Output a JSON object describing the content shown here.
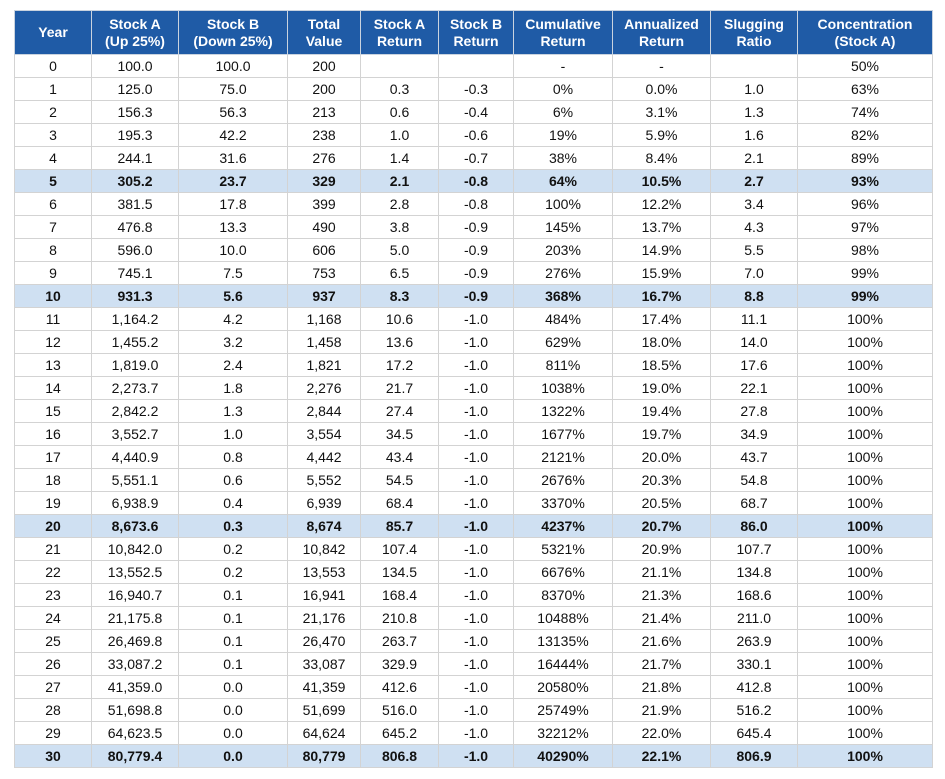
{
  "table": {
    "headers": [
      "Year",
      "Stock A\n(Up 25%)",
      "Stock B\n(Down 25%)",
      "Total\nValue",
      "Stock A\nReturn",
      "Stock B\nReturn",
      "Cumulative\nReturn",
      "Annualized\nReturn",
      "Slugging\nRatio",
      "Concentration\n(Stock A)"
    ],
    "rows": [
      {
        "cells": [
          "0",
          "100.0",
          "100.0",
          "200",
          null,
          null,
          "-",
          "-",
          null,
          "50%"
        ]
      },
      {
        "cells": [
          "1",
          "125.0",
          "75.0",
          "200",
          "0.3",
          "-0.3",
          "0%",
          "0.0%",
          "1.0",
          "63%"
        ]
      },
      {
        "cells": [
          "2",
          "156.3",
          "56.3",
          "213",
          "0.6",
          "-0.4",
          "6%",
          "3.1%",
          "1.3",
          "74%"
        ]
      },
      {
        "cells": [
          "3",
          "195.3",
          "42.2",
          "238",
          "1.0",
          "-0.6",
          "19%",
          "5.9%",
          "1.6",
          "82%"
        ]
      },
      {
        "cells": [
          "4",
          "244.1",
          "31.6",
          "276",
          "1.4",
          "-0.7",
          "38%",
          "8.4%",
          "2.1",
          "89%"
        ]
      },
      {
        "cells": [
          "5",
          "305.2",
          "23.7",
          "329",
          "2.1",
          "-0.8",
          "64%",
          "10.5%",
          "2.7",
          "93%"
        ],
        "bold": true
      },
      {
        "cells": [
          "6",
          "381.5",
          "17.8",
          "399",
          "2.8",
          "-0.8",
          "100%",
          "12.2%",
          "3.4",
          "96%"
        ]
      },
      {
        "cells": [
          "7",
          "476.8",
          "13.3",
          "490",
          "3.8",
          "-0.9",
          "145%",
          "13.7%",
          "4.3",
          "97%"
        ]
      },
      {
        "cells": [
          "8",
          "596.0",
          "10.0",
          "606",
          "5.0",
          "-0.9",
          "203%",
          "14.9%",
          "5.5",
          "98%"
        ]
      },
      {
        "cells": [
          "9",
          "745.1",
          "7.5",
          "753",
          "6.5",
          "-0.9",
          "276%",
          "15.9%",
          "7.0",
          "99%"
        ]
      },
      {
        "cells": [
          "10",
          "931.3",
          "5.6",
          "937",
          "8.3",
          "-0.9",
          "368%",
          "16.7%",
          "8.8",
          "99%"
        ],
        "bold": true
      },
      {
        "cells": [
          "11",
          "1,164.2",
          "4.2",
          "1,168",
          "10.6",
          "-1.0",
          "484%",
          "17.4%",
          "11.1",
          "100%"
        ]
      },
      {
        "cells": [
          "12",
          "1,455.2",
          "3.2",
          "1,458",
          "13.6",
          "-1.0",
          "629%",
          "18.0%",
          "14.0",
          "100%"
        ]
      },
      {
        "cells": [
          "13",
          "1,819.0",
          "2.4",
          "1,821",
          "17.2",
          "-1.0",
          "811%",
          "18.5%",
          "17.6",
          "100%"
        ]
      },
      {
        "cells": [
          "14",
          "2,273.7",
          "1.8",
          "2,276",
          "21.7",
          "-1.0",
          "1038%",
          "19.0%",
          "22.1",
          "100%"
        ]
      },
      {
        "cells": [
          "15",
          "2,842.2",
          "1.3",
          "2,844",
          "27.4",
          "-1.0",
          "1322%",
          "19.4%",
          "27.8",
          "100%"
        ]
      },
      {
        "cells": [
          "16",
          "3,552.7",
          "1.0",
          "3,554",
          "34.5",
          "-1.0",
          "1677%",
          "19.7%",
          "34.9",
          "100%"
        ]
      },
      {
        "cells": [
          "17",
          "4,440.9",
          "0.8",
          "4,442",
          "43.4",
          "-1.0",
          "2121%",
          "20.0%",
          "43.7",
          "100%"
        ]
      },
      {
        "cells": [
          "18",
          "5,551.1",
          "0.6",
          "5,552",
          "54.5",
          "-1.0",
          "2676%",
          "20.3%",
          "54.8",
          "100%"
        ]
      },
      {
        "cells": [
          "19",
          "6,938.9",
          "0.4",
          "6,939",
          "68.4",
          "-1.0",
          "3370%",
          "20.5%",
          "68.7",
          "100%"
        ]
      },
      {
        "cells": [
          "20",
          "8,673.6",
          "0.3",
          "8,674",
          "85.7",
          "-1.0",
          "4237%",
          "20.7%",
          "86.0",
          "100%"
        ],
        "bold": true
      },
      {
        "cells": [
          "21",
          "10,842.0",
          "0.2",
          "10,842",
          "107.4",
          "-1.0",
          "5321%",
          "20.9%",
          "107.7",
          "100%"
        ]
      },
      {
        "cells": [
          "22",
          "13,552.5",
          "0.2",
          "13,553",
          "134.5",
          "-1.0",
          "6676%",
          "21.1%",
          "134.8",
          "100%"
        ]
      },
      {
        "cells": [
          "23",
          "16,940.7",
          "0.1",
          "16,941",
          "168.4",
          "-1.0",
          "8370%",
          "21.3%",
          "168.6",
          "100%"
        ]
      },
      {
        "cells": [
          "24",
          "21,175.8",
          "0.1",
          "21,176",
          "210.8",
          "-1.0",
          "10488%",
          "21.4%",
          "211.0",
          "100%"
        ]
      },
      {
        "cells": [
          "25",
          "26,469.8",
          "0.1",
          "26,470",
          "263.7",
          "-1.0",
          "13135%",
          "21.6%",
          "263.9",
          "100%"
        ]
      },
      {
        "cells": [
          "26",
          "33,087.2",
          "0.1",
          "33,087",
          "329.9",
          "-1.0",
          "16444%",
          "21.7%",
          "330.1",
          "100%"
        ]
      },
      {
        "cells": [
          "27",
          "41,359.0",
          "0.0",
          "41,359",
          "412.6",
          "-1.0",
          "20580%",
          "21.8%",
          "412.8",
          "100%"
        ]
      },
      {
        "cells": [
          "28",
          "51,698.8",
          "0.0",
          "51,699",
          "516.0",
          "-1.0",
          "25749%",
          "21.9%",
          "516.2",
          "100%"
        ]
      },
      {
        "cells": [
          "29",
          "64,623.5",
          "0.0",
          "64,624",
          "645.2",
          "-1.0",
          "32212%",
          "22.0%",
          "645.4",
          "100%"
        ]
      },
      {
        "cells": [
          "30",
          "80,779.4",
          "0.0",
          "80,779",
          "806.8",
          "-1.0",
          "40290%",
          "22.1%",
          "806.9",
          "100%"
        ],
        "bold": true
      }
    ]
  }
}
